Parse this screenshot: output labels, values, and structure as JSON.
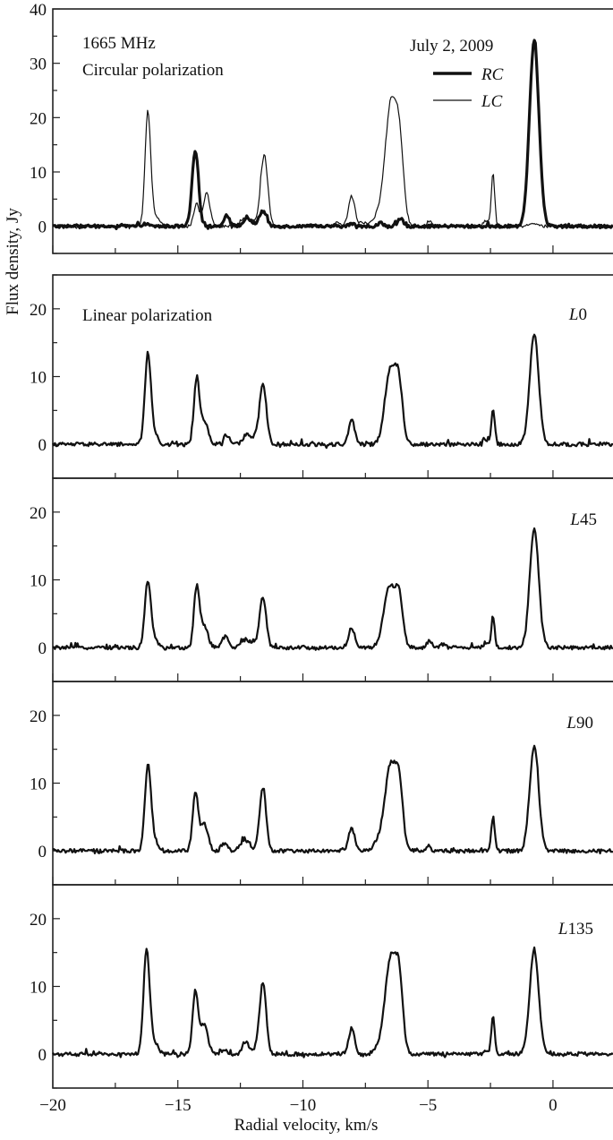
{
  "chart_data": {
    "type": "line",
    "xlabel": "Radial velocity, km/s",
    "ylabel": "Flux density, Jy",
    "xlim": [
      -20,
      2.4
    ],
    "x_ticks": [
      -20,
      -15,
      -10,
      -5,
      0
    ],
    "x_tick_labels": [
      "−20",
      "−15",
      "−10",
      "−5",
      "0"
    ],
    "x_minor_step": 2.5,
    "grid": false,
    "panels": [
      {
        "id": "circular",
        "ylim": [
          -5,
          40
        ],
        "y_ticks": [
          0,
          10,
          20,
          30,
          40
        ],
        "y_minor_step": 5,
        "annotations": {
          "freq": "1665 MHz",
          "pol": "Circular polarization",
          "date": "July 2, 2009"
        },
        "legend": [
          {
            "label": "RC",
            "style": "thick"
          },
          {
            "label": "LC",
            "style": "thin"
          }
        ],
        "series": [
          {
            "name": "RC",
            "style": "thick",
            "peaks": [
              {
                "v": -16.3,
                "amp": 0.4,
                "w": 0.12
              },
              {
                "v": -14.3,
                "amp": 13.8,
                "w": 0.13
              },
              {
                "v": -13.05,
                "amp": 2.0,
                "w": 0.12
              },
              {
                "v": -12.2,
                "amp": 1.3,
                "w": 0.18
              },
              {
                "v": -11.6,
                "amp": 2.8,
                "w": 0.14
              },
              {
                "v": -8.05,
                "amp": 0.5,
                "w": 0.1
              },
              {
                "v": -6.9,
                "amp": 0.6,
                "w": 0.1
              },
              {
                "v": -6.1,
                "amp": 1.2,
                "w": 0.12
              },
              {
                "v": -0.75,
                "amp": 34.0,
                "w": 0.19
              }
            ]
          },
          {
            "name": "LC",
            "style": "thin",
            "peaks": [
              {
                "v": -16.2,
                "amp": 20.3,
                "w": 0.11
              },
              {
                "v": -15.95,
                "amp": 2.0,
                "w": 0.2
              },
              {
                "v": -14.25,
                "amp": 4.0,
                "w": 0.11
              },
              {
                "v": -13.85,
                "amp": 6.0,
                "w": 0.13
              },
              {
                "v": -12.35,
                "amp": 1.6,
                "w": 0.13
              },
              {
                "v": -12.0,
                "amp": 1.0,
                "w": 0.15
              },
              {
                "v": -11.55,
                "amp": 13.3,
                "w": 0.14
              },
              {
                "v": -8.6,
                "amp": 0.6,
                "w": 0.15
              },
              {
                "v": -8.05,
                "amp": 5.5,
                "w": 0.12
              },
              {
                "v": -7.6,
                "amp": 0.7,
                "w": 0.2
              },
              {
                "v": -6.5,
                "amp": 20.8,
                "w": 0.2
              },
              {
                "v": -6.15,
                "amp": 15.8,
                "w": 0.17
              },
              {
                "v": -6.9,
                "amp": 3.0,
                "w": 0.2
              },
              {
                "v": -4.95,
                "amp": 1.0,
                "w": 0.09
              },
              {
                "v": -2.7,
                "amp": 1.0,
                "w": 0.1
              },
              {
                "v": -2.4,
                "amp": 9.5,
                "w": 0.07
              },
              {
                "v": -0.75,
                "amp": 0.5,
                "w": 0.15
              }
            ]
          }
        ]
      },
      {
        "id": "L0",
        "label": "L0",
        "label_prefix": "L",
        "label_suffix": "0",
        "text": "Linear polarization",
        "ylim": [
          -5,
          25
        ],
        "y_ticks": [
          0,
          10,
          20
        ],
        "y_minor_step": 5,
        "series": [
          {
            "name": "L0",
            "style": "medium",
            "peaks": [
              {
                "v": -16.2,
                "amp": 13.0,
                "w": 0.12
              },
              {
                "v": -15.95,
                "amp": 1.5,
                "w": 0.15
              },
              {
                "v": -14.25,
                "amp": 9.5,
                "w": 0.11
              },
              {
                "v": -13.95,
                "amp": 3.5,
                "w": 0.15
              },
              {
                "v": -13.05,
                "amp": 1.4,
                "w": 0.12
              },
              {
                "v": -12.25,
                "amp": 1.4,
                "w": 0.14
              },
              {
                "v": -11.95,
                "amp": 0.8,
                "w": 0.1
              },
              {
                "v": -11.6,
                "amp": 8.8,
                "w": 0.14
              },
              {
                "v": -8.05,
                "amp": 3.6,
                "w": 0.12
              },
              {
                "v": -6.5,
                "amp": 11.0,
                "w": 0.22
              },
              {
                "v": -6.15,
                "amp": 7.5,
                "w": 0.15
              },
              {
                "v": -2.7,
                "amp": 0.8,
                "w": 0.1
              },
              {
                "v": -2.4,
                "amp": 5.2,
                "w": 0.07
              },
              {
                "v": -0.75,
                "amp": 16.3,
                "w": 0.18
              }
            ]
          }
        ]
      },
      {
        "id": "L45",
        "label": "L45",
        "label_prefix": "L",
        "label_suffix": "45",
        "ylim": [
          -5,
          25
        ],
        "y_ticks": [
          0,
          10,
          20
        ],
        "y_minor_step": 5,
        "series": [
          {
            "name": "L45",
            "style": "medium",
            "peaks": [
              {
                "v": -16.2,
                "amp": 9.7,
                "w": 0.12
              },
              {
                "v": -15.95,
                "amp": 1.0,
                "w": 0.15
              },
              {
                "v": -14.25,
                "amp": 8.8,
                "w": 0.11
              },
              {
                "v": -13.95,
                "amp": 3.2,
                "w": 0.15
              },
              {
                "v": -13.1,
                "amp": 1.6,
                "w": 0.13
              },
              {
                "v": -12.35,
                "amp": 1.3,
                "w": 0.13
              },
              {
                "v": -12.0,
                "amp": 0.9,
                "w": 0.12
              },
              {
                "v": -11.6,
                "amp": 7.6,
                "w": 0.13
              },
              {
                "v": -8.05,
                "amp": 3.0,
                "w": 0.12
              },
              {
                "v": -6.55,
                "amp": 9.0,
                "w": 0.22
              },
              {
                "v": -6.15,
                "amp": 7.0,
                "w": 0.15
              },
              {
                "v": -4.95,
                "amp": 0.9,
                "w": 0.1
              },
              {
                "v": -4.4,
                "amp": 0.5,
                "w": 0.1
              },
              {
                "v": -2.7,
                "amp": 0.7,
                "w": 0.08
              },
              {
                "v": -2.4,
                "amp": 4.6,
                "w": 0.07
              },
              {
                "v": -0.75,
                "amp": 17.5,
                "w": 0.18
              }
            ]
          }
        ]
      },
      {
        "id": "L90",
        "label": "L90",
        "label_prefix": "L",
        "label_suffix": "90",
        "ylim": [
          -5,
          25
        ],
        "y_ticks": [
          0,
          10,
          20
        ],
        "y_minor_step": 5,
        "series": [
          {
            "name": "L90",
            "style": "medium",
            "peaks": [
              {
                "v": -16.2,
                "amp": 12.4,
                "w": 0.12
              },
              {
                "v": -15.95,
                "amp": 1.5,
                "w": 0.15
              },
              {
                "v": -14.3,
                "amp": 8.5,
                "w": 0.11
              },
              {
                "v": -13.95,
                "amp": 4.0,
                "w": 0.15
              },
              {
                "v": -13.15,
                "amp": 1.1,
                "w": 0.12
              },
              {
                "v": -12.3,
                "amp": 1.8,
                "w": 0.18
              },
              {
                "v": -11.6,
                "amp": 9.2,
                "w": 0.13
              },
              {
                "v": -8.05,
                "amp": 3.4,
                "w": 0.12
              },
              {
                "v": -6.5,
                "amp": 12.1,
                "w": 0.2
              },
              {
                "v": -6.15,
                "amp": 9.5,
                "w": 0.15
              },
              {
                "v": -6.9,
                "amp": 2.0,
                "w": 0.2
              },
              {
                "v": -4.95,
                "amp": 0.8,
                "w": 0.07
              },
              {
                "v": -2.4,
                "amp": 5.0,
                "w": 0.07
              },
              {
                "v": -0.75,
                "amp": 15.3,
                "w": 0.18
              }
            ]
          }
        ]
      },
      {
        "id": "L135",
        "label": "L135",
        "label_prefix": "L",
        "label_suffix": "135",
        "ylim": [
          -5,
          25
        ],
        "y_ticks": [
          0,
          10,
          20
        ],
        "y_minor_step": 5,
        "series": [
          {
            "name": "L135",
            "style": "medium",
            "peaks": [
              {
                "v": -16.25,
                "amp": 15.5,
                "w": 0.12
              },
              {
                "v": -15.95,
                "amp": 1.8,
                "w": 0.15
              },
              {
                "v": -14.3,
                "amp": 9.3,
                "w": 0.11
              },
              {
                "v": -13.95,
                "amp": 4.3,
                "w": 0.15
              },
              {
                "v": -13.15,
                "amp": 0.6,
                "w": 0.15
              },
              {
                "v": -12.3,
                "amp": 1.9,
                "w": 0.12
              },
              {
                "v": -11.95,
                "amp": 0.6,
                "w": 0.15
              },
              {
                "v": -11.6,
                "amp": 10.7,
                "w": 0.13
              },
              {
                "v": -8.05,
                "amp": 3.8,
                "w": 0.12
              },
              {
                "v": -6.5,
                "amp": 13.7,
                "w": 0.2
              },
              {
                "v": -6.15,
                "amp": 10.8,
                "w": 0.15
              },
              {
                "v": -6.9,
                "amp": 1.5,
                "w": 0.2
              },
              {
                "v": -2.7,
                "amp": 0.7,
                "w": 0.08
              },
              {
                "v": -2.4,
                "amp": 5.6,
                "w": 0.07
              },
              {
                "v": -0.75,
                "amp": 15.5,
                "w": 0.18
              }
            ]
          }
        ]
      }
    ]
  },
  "layout_hints": {
    "legend_position": "top-right of top panel",
    "shared_x_axis": true
  }
}
